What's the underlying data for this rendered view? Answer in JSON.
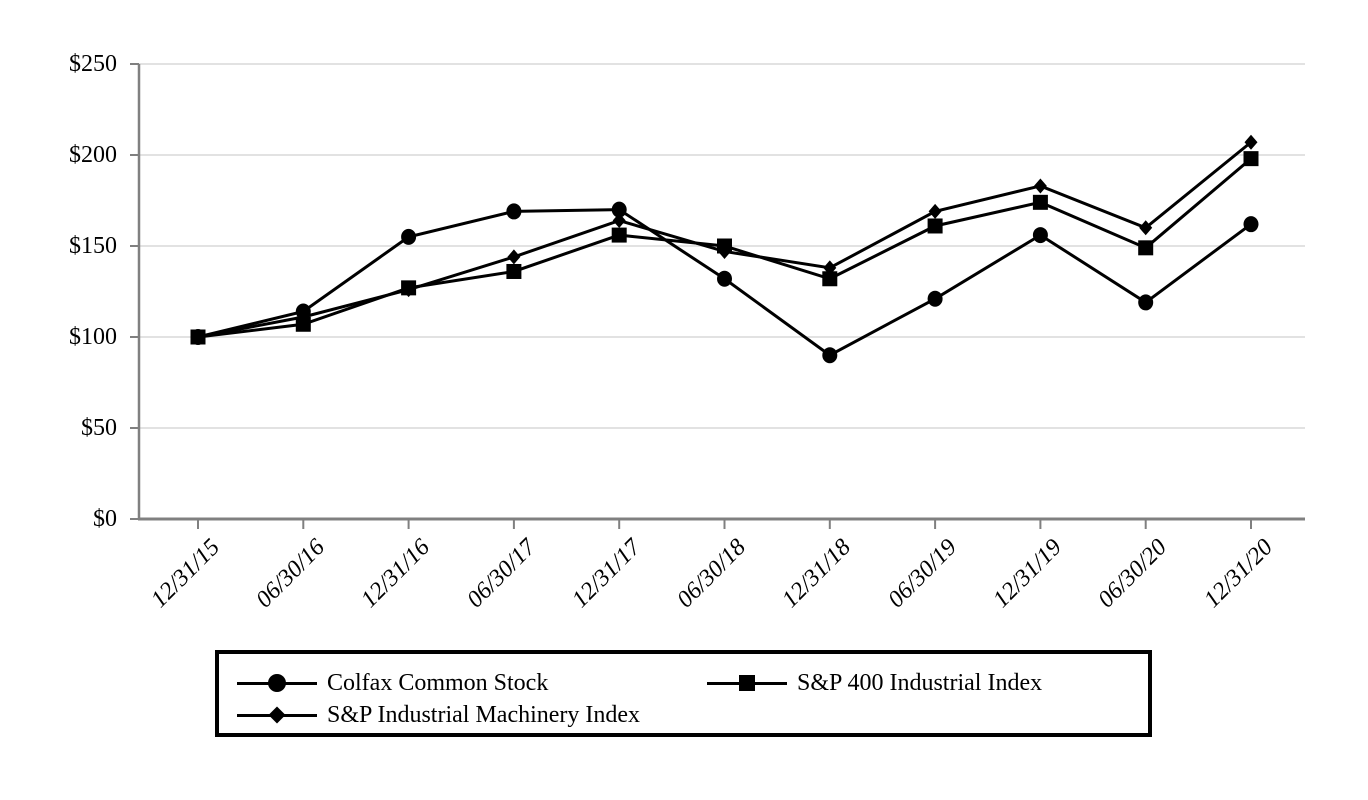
{
  "chart_data": {
    "type": "line",
    "title": "",
    "categories": [
      "12/31/15",
      "06/30/16",
      "12/31/16",
      "06/30/17",
      "12/31/17",
      "06/30/18",
      "12/31/18",
      "06/30/19",
      "12/31/19",
      "06/30/20",
      "12/31/20"
    ],
    "series": [
      {
        "name": "Colfax Common Stock",
        "marker": "circle",
        "values": [
          100,
          114,
          155,
          169,
          170,
          132,
          90,
          121,
          156,
          119,
          162
        ]
      },
      {
        "name": "S&P 400 Industrial Index",
        "marker": "square",
        "values": [
          100,
          107,
          127,
          136,
          156,
          150,
          132,
          161,
          174,
          149,
          198
        ]
      },
      {
        "name": "S&P Industrial Machinery Index",
        "marker": "diamond",
        "values": [
          100,
          111,
          126,
          144,
          164,
          147,
          138,
          169,
          183,
          160,
          207
        ]
      }
    ],
    "draw_order": [
      2,
      0,
      1
    ],
    "xlabel": "",
    "ylabel": "",
    "ylim": [
      0,
      250
    ],
    "y_tick_values": [
      0,
      50,
      100,
      150,
      200,
      250
    ],
    "y_tick_labels": [
      "$0",
      "$50",
      "$100",
      "$150",
      "$200",
      "$250"
    ],
    "grid": true,
    "legend_position": "bottom-box",
    "colors": {
      "series": "#000000",
      "axis": "#808080",
      "grid": "#e2e2e2",
      "background": "#ffffff",
      "legend_border": "#000000"
    }
  }
}
